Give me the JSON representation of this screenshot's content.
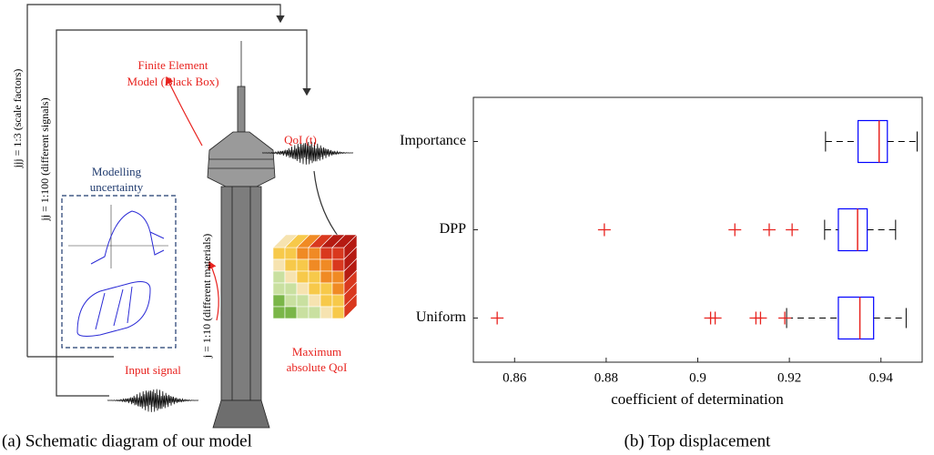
{
  "diagram": {
    "fe_label": [
      "Finite Element",
      "Model (Black Box)"
    ],
    "qoi_label": "QoI (t)",
    "modelling_label": [
      "Modelling",
      "uncertainty"
    ],
    "jjj_label": "jjj = 1:3 (scale factors)",
    "jj_label": "jj = 1:100 (different signals)",
    "j_label": "j = 1:10 (different materials)",
    "input_label": "Input signal",
    "output_label": [
      "Maximum",
      "absolute QoI"
    ],
    "caption": "(a) Schematic diagram of our model"
  },
  "chart_data": {
    "type": "boxplot",
    "caption": "(b) Top displacement",
    "xlabel": "coefficient of determination",
    "categories": [
      "Importance",
      "DPP",
      "Uniform"
    ],
    "boxes": [
      {
        "min": 0.9279,
        "q1": 0.935,
        "median": 0.9396,
        "q3": 0.9414,
        "max": 0.9479,
        "outliers": []
      },
      {
        "min": 0.9277,
        "q1": 0.9307,
        "median": 0.9349,
        "q3": 0.937,
        "max": 0.9432,
        "outliers": [
          0.8796,
          0.9081,
          0.9156,
          0.9206
        ]
      },
      {
        "min": 0.9194,
        "q1": 0.9307,
        "median": 0.9354,
        "q3": 0.9384,
        "max": 0.9455,
        "outliers": [
          0.8562,
          0.9028,
          0.9038,
          0.9127,
          0.9137,
          0.919
        ]
      }
    ],
    "box_color": "#0000ff",
    "median_color": "#e8231f",
    "outlier_color": "#e8231f",
    "xlim": [
      0.851,
      0.949
    ],
    "xticks": [
      0.86,
      0.88,
      0.9,
      0.92,
      0.94
    ]
  }
}
